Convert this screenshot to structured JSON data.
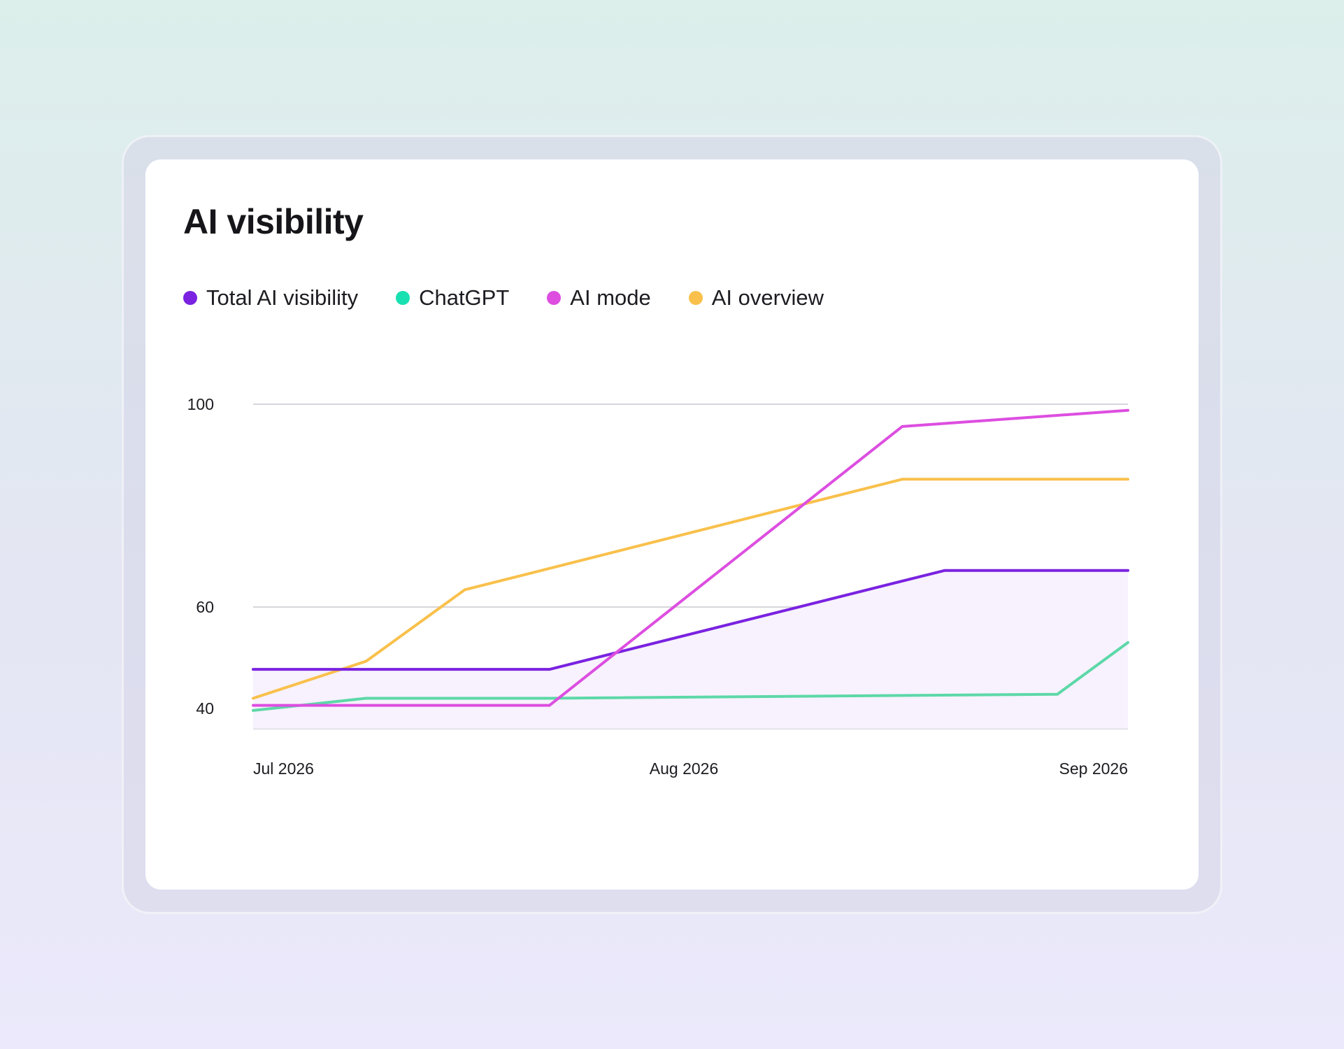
{
  "card": {
    "title": "AI visibility"
  },
  "chart_data": {
    "type": "line",
    "title": "AI visibility",
    "x": [
      "2026-07-01",
      "2026-07-09",
      "2026-07-16",
      "2026-07-22",
      "2026-08-01",
      "2026-08-19",
      "2026-08-21",
      "2026-08-27",
      "2026-09-01"
    ],
    "x_tick_labels": [
      "Jul 2026",
      "Aug 2026",
      "Sep 2026"
    ],
    "y_ticks": [
      100,
      60,
      40
    ],
    "ylim": [
      36,
      100
    ],
    "grid": true,
    "legend_position": "top-left",
    "series": [
      {
        "name": "Total AI visibility",
        "color": "#7a22e0",
        "area_fill": "#f7f2fd",
        "points": [
          [
            "2026-07-01",
            47.7
          ],
          [
            "2026-07-22",
            47.7
          ],
          [
            "2026-08-19",
            67.2
          ],
          [
            "2026-09-01",
            67.2
          ]
        ]
      },
      {
        "name": "ChatGPT",
        "color": "#5dd8a8",
        "points": [
          [
            "2026-07-01",
            39.6
          ],
          [
            "2026-07-09",
            42.0
          ],
          [
            "2026-07-22",
            42.0
          ],
          [
            "2026-08-27",
            42.8
          ],
          [
            "2026-09-01",
            53.0
          ]
        ]
      },
      {
        "name": "AI mode",
        "color": "#dd4ee0",
        "points": [
          [
            "2026-07-01",
            40.6
          ],
          [
            "2026-07-22",
            40.6
          ],
          [
            "2026-08-16",
            95.6
          ],
          [
            "2026-09-01",
            98.8
          ]
        ]
      },
      {
        "name": "AI overview",
        "color": "#f9c04b",
        "points": [
          [
            "2026-07-01",
            42.0
          ],
          [
            "2026-07-09",
            49.3
          ],
          [
            "2026-07-16",
            63.4
          ],
          [
            "2026-08-16",
            85.2
          ],
          [
            "2026-09-01",
            85.2
          ]
        ]
      }
    ]
  },
  "legend": {
    "dot_colors": [
      "#7a22e0",
      "#18e0b0",
      "#dd4ee0",
      "#f9c04b"
    ]
  }
}
